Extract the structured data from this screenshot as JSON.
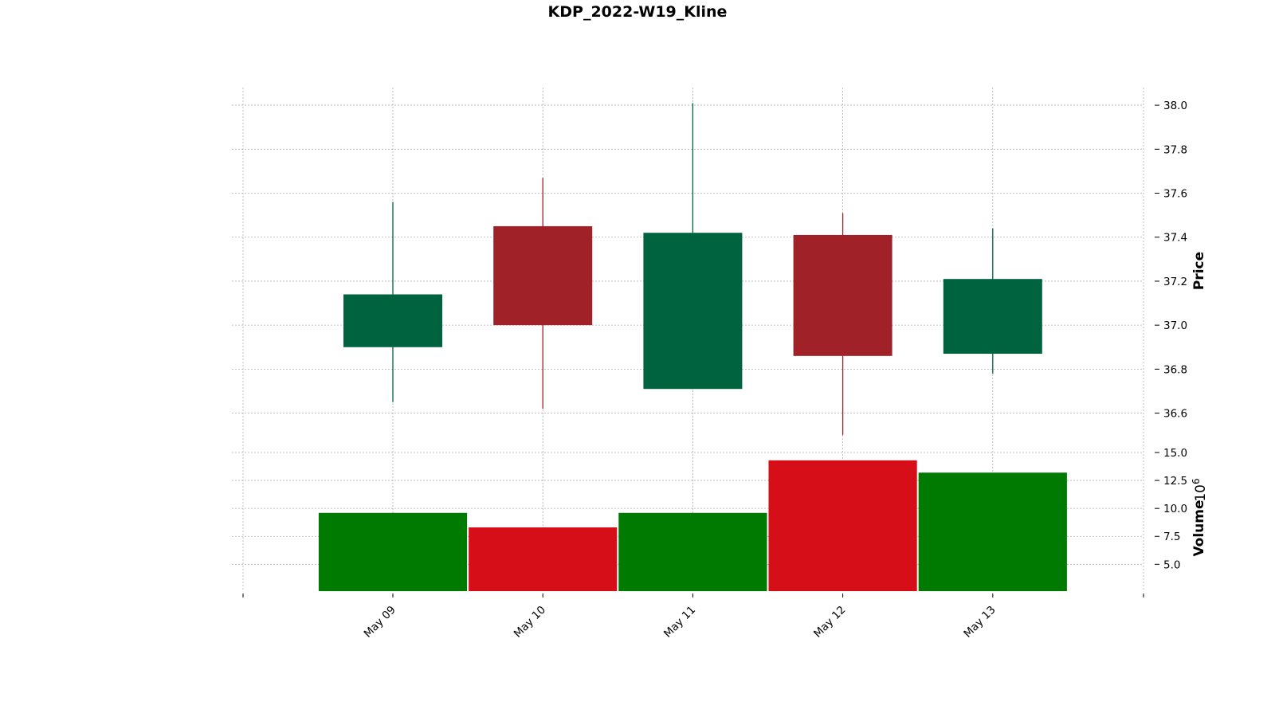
{
  "chart_data": {
    "type": "candlestick",
    "title": "KDP_2022-W19_Kline",
    "categories": [
      "May 09",
      "May 10",
      "May 11",
      "May 12",
      "May 13"
    ],
    "ohlc": [
      {
        "date": "May 09",
        "open": 36.9,
        "high": 37.56,
        "low": 36.65,
        "close": 37.14
      },
      {
        "date": "May 10",
        "open": 37.45,
        "high": 37.67,
        "low": 36.62,
        "close": 37.0
      },
      {
        "date": "May 11",
        "open": 36.71,
        "high": 38.01,
        "low": 36.71,
        "close": 37.42
      },
      {
        "date": "May 12",
        "open": 37.41,
        "high": 37.51,
        "low": 36.5,
        "close": 36.86
      },
      {
        "date": "May 13",
        "open": 36.87,
        "high": 37.44,
        "low": 36.78,
        "close": 37.21
      }
    ],
    "volume": [
      9.6,
      8.3,
      9.6,
      14.3,
      13.2
    ],
    "price_axis": {
      "label": "Price",
      "ylim": [
        36.45,
        38.08
      ],
      "ticks": [
        "36.6",
        "36.8",
        "37.0",
        "37.2",
        "37.4",
        "37.6",
        "37.8",
        "38.0"
      ]
    },
    "volume_axis": {
      "label": "Volume",
      "multiplier": "10^6",
      "ylim": [
        2.6,
        15.0
      ],
      "ticks": [
        "5.0",
        "7.5",
        "10.0",
        "12.5",
        "15.0"
      ]
    },
    "colors": {
      "up_candle": "#006340",
      "down_candle": "#a02128",
      "up_volume": "#007a00",
      "down_volume": "#d60e18",
      "grid": "#b0b0b0"
    },
    "grid": true,
    "y_axis_side": "right"
  }
}
